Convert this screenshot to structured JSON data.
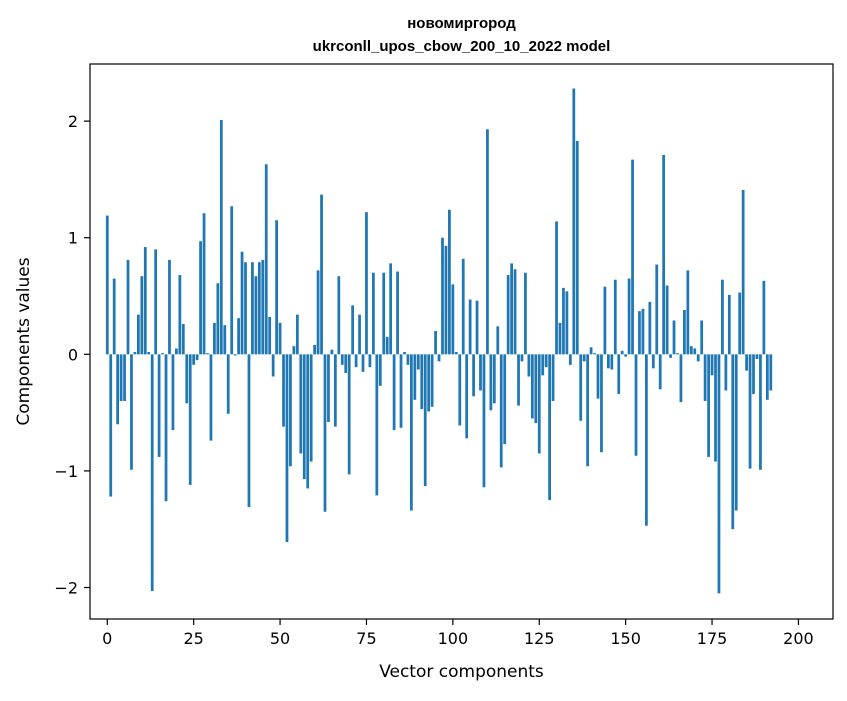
{
  "chart_data": {
    "type": "bar",
    "title": "новомиргород",
    "subtitle": "ukrconll_upos_cbow_200_10_2022 model",
    "xlabel": "Vector components",
    "ylabel": "Components values",
    "xlim": [
      -5,
      210
    ],
    "ylim": [
      -2.27,
      2.49
    ],
    "x_ticks": [
      0,
      25,
      50,
      75,
      100,
      125,
      150,
      175,
      200
    ],
    "y_ticks": [
      -2,
      -1,
      0,
      1,
      2
    ],
    "x_tick_labels": [
      "0",
      "25",
      "50",
      "75",
      "100",
      "125",
      "150",
      "175",
      "200"
    ],
    "y_tick_labels": [
      "−2",
      "−1",
      "0",
      "1",
      "2"
    ],
    "bar_color": "#1f77b4",
    "grid": false,
    "legend": "none",
    "values": [
      1.19,
      -1.22,
      0.65,
      -0.6,
      -0.4,
      -0.4,
      0.81,
      -0.99,
      0.02,
      0.34,
      0.67,
      0.92,
      0.02,
      -2.03,
      0.9,
      -0.88,
      0.01,
      -1.26,
      0.81,
      -0.65,
      0.05,
      0.68,
      0.26,
      -0.42,
      -1.12,
      -0.09,
      -0.05,
      0.97,
      1.21,
      0.01,
      -0.74,
      0.27,
      0.61,
      2.01,
      0.25,
      -0.51,
      1.27,
      -0.01,
      0.31,
      0.88,
      0.79,
      -1.31,
      0.79,
      0.67,
      0.79,
      0.81,
      1.63,
      0.32,
      -0.19,
      1.15,
      0.27,
      -0.62,
      -1.61,
      -0.96,
      0.07,
      0.34,
      -0.85,
      -1.07,
      -1.15,
      -0.92,
      0.08,
      0.72,
      1.37,
      -1.35,
      -0.58,
      0.04,
      -0.62,
      0.67,
      -0.09,
      -0.16,
      -1.03,
      0.42,
      -0.11,
      0.34,
      -0.15,
      1.22,
      -0.11,
      0.7,
      -1.21,
      -0.27,
      0.7,
      0.15,
      0.78,
      -0.65,
      0.71,
      -0.63,
      0.02,
      -0.09,
      -1.34,
      -0.39,
      -0.13,
      -0.47,
      -1.13,
      -0.49,
      -0.45,
      0.2,
      -0.06,
      1,
      0.93,
      1.24,
      0.6,
      0.02,
      -0.61,
      0.82,
      -0.72,
      0.47,
      -0.36,
      0.46,
      -0.31,
      -1.14,
      1.93,
      -0.48,
      -0.42,
      0.24,
      -0.97,
      -0.77,
      0.68,
      0.78,
      0.73,
      -0.44,
      -0.06,
      0.7,
      -0.19,
      -0.55,
      -0.59,
      -0.85,
      -0.18,
      -0.11,
      -1.25,
      -0.4,
      1.14,
      0.27,
      0.57,
      0.54,
      -0.09,
      2.28,
      1.83,
      -0.57,
      -0.06,
      -0.96,
      0.06,
      0.01,
      -0.38,
      -0.84,
      0.58,
      -0.12,
      -0.13,
      0.64,
      -0.34,
      0.03,
      -0.02,
      0.65,
      1.67,
      -0.87,
      0.37,
      0.39,
      -1.47,
      0.45,
      -0.12,
      0.77,
      -0.3,
      1.71,
      0.59,
      -0.03,
      0.29,
      0.01,
      -0.41,
      0.38,
      0.72,
      0.07,
      0.05,
      -0.06,
      0.29,
      -0.4,
      -0.88,
      -0.18,
      -0.92,
      -2.05,
      0.64,
      -0.31,
      0.51,
      -1.5,
      -1.34,
      0.53,
      1.41,
      -0.14,
      -0.98,
      -0.34,
      -0.04,
      -0.99,
      0.63,
      -0.39,
      -0.31
    ]
  }
}
